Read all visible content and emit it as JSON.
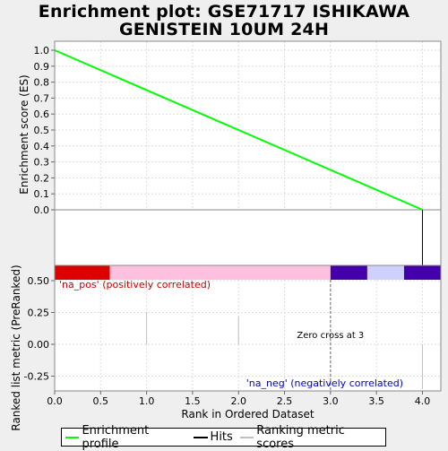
{
  "title_line1": "Enrichment plot: GSE71717 ISHIKAWA",
  "title_line2": "GENISTEIN 10UM 24H",
  "chart_data": [
    {
      "type": "line",
      "ylabel": "Enrichment score (ES)",
      "xlim": [
        0,
        4.2
      ],
      "ylim": [
        -0.05,
        1.05
      ],
      "yticks": [
        "0.0",
        "0.1",
        "0.2",
        "0.3",
        "0.4",
        "0.5",
        "0.6",
        "0.7",
        "0.8",
        "0.9",
        "1.0"
      ],
      "series": [
        {
          "name": "Enrichment profile",
          "color": "#00ff00",
          "x": [
            0,
            4.0
          ],
          "y": [
            1.0,
            0.0
          ]
        }
      ],
      "hits": [
        0,
        4.0
      ],
      "grid": true
    },
    {
      "type": "bar",
      "xlabel": "Rank in Ordered Dataset",
      "ylabel": "Ranked list metric (PreRanked)",
      "xlim": [
        0,
        4.2
      ],
      "ylim": [
        -0.37,
        0.6
      ],
      "xticks": [
        "0.0",
        "0.5",
        "1.0",
        "1.5",
        "2.0",
        "2.5",
        "3.0",
        "3.5",
        "4.0"
      ],
      "yticks": [
        "-0.25",
        "0.00",
        "0.25",
        "0.50"
      ],
      "values": [
        {
          "x": 1.0,
          "y": 0.25
        },
        {
          "x": 2.0,
          "y": 0.22
        },
        {
          "x": 4.0,
          "y": -0.35
        }
      ],
      "zero_cross": 3,
      "annotation": "Zero cross at 3",
      "pos_label": "'na_pos' (positively correlated)",
      "neg_label": "'na_neg' (negatively correlated)",
      "color_bar": [
        {
          "from": 0,
          "to": 0.6,
          "color": "#dd0000"
        },
        {
          "from": 0.6,
          "to": 3.0,
          "color": "#ffc0e0"
        },
        {
          "from": 3.0,
          "to": 3.4,
          "color": "#4400aa"
        },
        {
          "from": 3.4,
          "to": 3.8,
          "color": "#d0d0ff"
        },
        {
          "from": 3.8,
          "to": 4.2,
          "color": "#4400aa"
        }
      ],
      "grid": true
    }
  ],
  "legend": [
    {
      "label": "Enrichment profile",
      "color": "#00ff00"
    },
    {
      "label": "Hits",
      "color": "#000000"
    },
    {
      "label": "Ranking metric scores",
      "color": "#c0c0c0"
    }
  ]
}
